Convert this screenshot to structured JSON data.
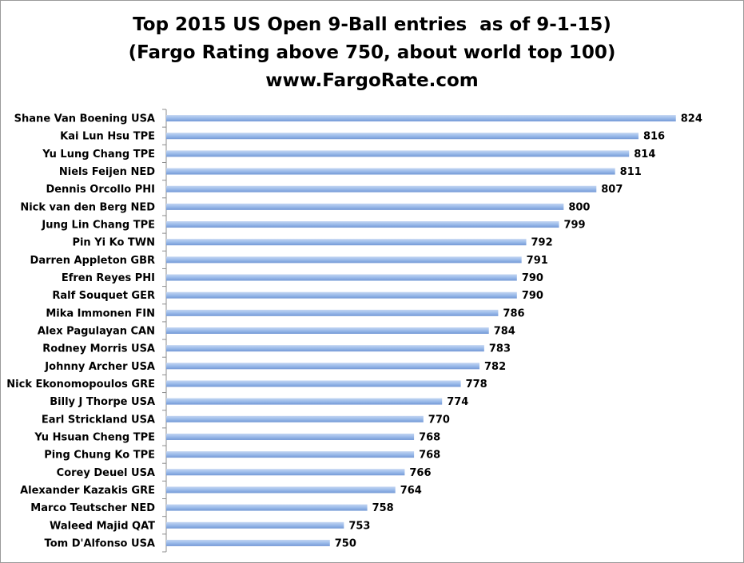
{
  "chart_data": {
    "type": "bar",
    "orientation": "horizontal",
    "title": "Top 2015 US Open 9-Ball entries  as of 9-1-15)",
    "subtitle": "(Fargo Rating above 750, about world top 100)",
    "source": "www.FargoRate.com",
    "categories": [
      "Shane Van Boening USA",
      "Kai Lun Hsu TPE",
      "Yu Lung Chang TPE",
      "Niels Feijen NED",
      "Dennis Orcollo PHI",
      "Nick van den Berg NED",
      "Jung Lin Chang TPE",
      "Pin Yi Ko TWN",
      "Darren Appleton GBR",
      "Efren Reyes PHI",
      "Ralf Souquet GER",
      "Mika Immonen FIN",
      "Alex Pagulayan CAN",
      "Rodney Morris USA",
      "Johnny Archer USA",
      "Nick Ekonomopoulos GRE",
      "Billy J Thorpe USA",
      "Earl Strickland USA",
      "Yu Hsuan Cheng TPE",
      "Ping Chung Ko TPE",
      "Corey Deuel USA",
      "Alexander Kazakis GRE",
      "Marco Teutscher NED",
      "Waleed Majid QAT",
      "Tom D'Alfonso USA"
    ],
    "values": [
      824,
      816,
      814,
      811,
      807,
      800,
      799,
      792,
      791,
      790,
      790,
      786,
      784,
      783,
      782,
      778,
      774,
      770,
      768,
      768,
      766,
      764,
      758,
      753,
      750
    ],
    "xlim": [
      715,
      829
    ],
    "grid": false,
    "legend": "none",
    "bar_color": "#8eb0e4"
  }
}
